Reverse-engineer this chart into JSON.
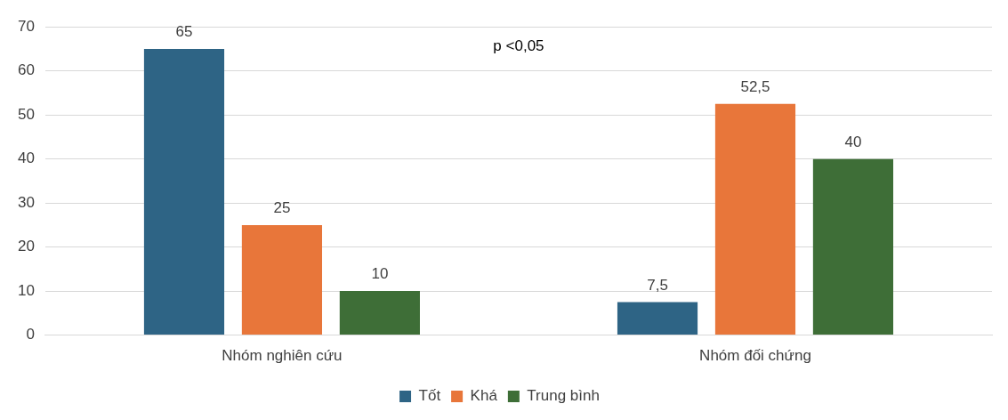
{
  "chart_data": {
    "type": "bar",
    "categories": [
      "Nhóm nghiên cứu",
      "Nhóm đối chứng"
    ],
    "series": [
      {
        "name": "Tốt",
        "color": "#2e6485",
        "values": [
          65,
          7.5
        ],
        "value_labels": [
          "65",
          "7,5"
        ]
      },
      {
        "name": "Khá",
        "color": "#e8763a",
        "values": [
          25,
          52.5
        ],
        "value_labels": [
          "25",
          "52,5"
        ]
      },
      {
        "name": "Trung bình",
        "color": "#3e6e37",
        "values": [
          10,
          40
        ],
        "value_labels": [
          "10",
          "40"
        ]
      }
    ],
    "ylim": [
      0,
      70
    ],
    "yticks": [
      0,
      10,
      20,
      30,
      40,
      50,
      60,
      70
    ],
    "grid": "y",
    "legend": "bottom",
    "annotations": [
      "p <0,05"
    ]
  }
}
